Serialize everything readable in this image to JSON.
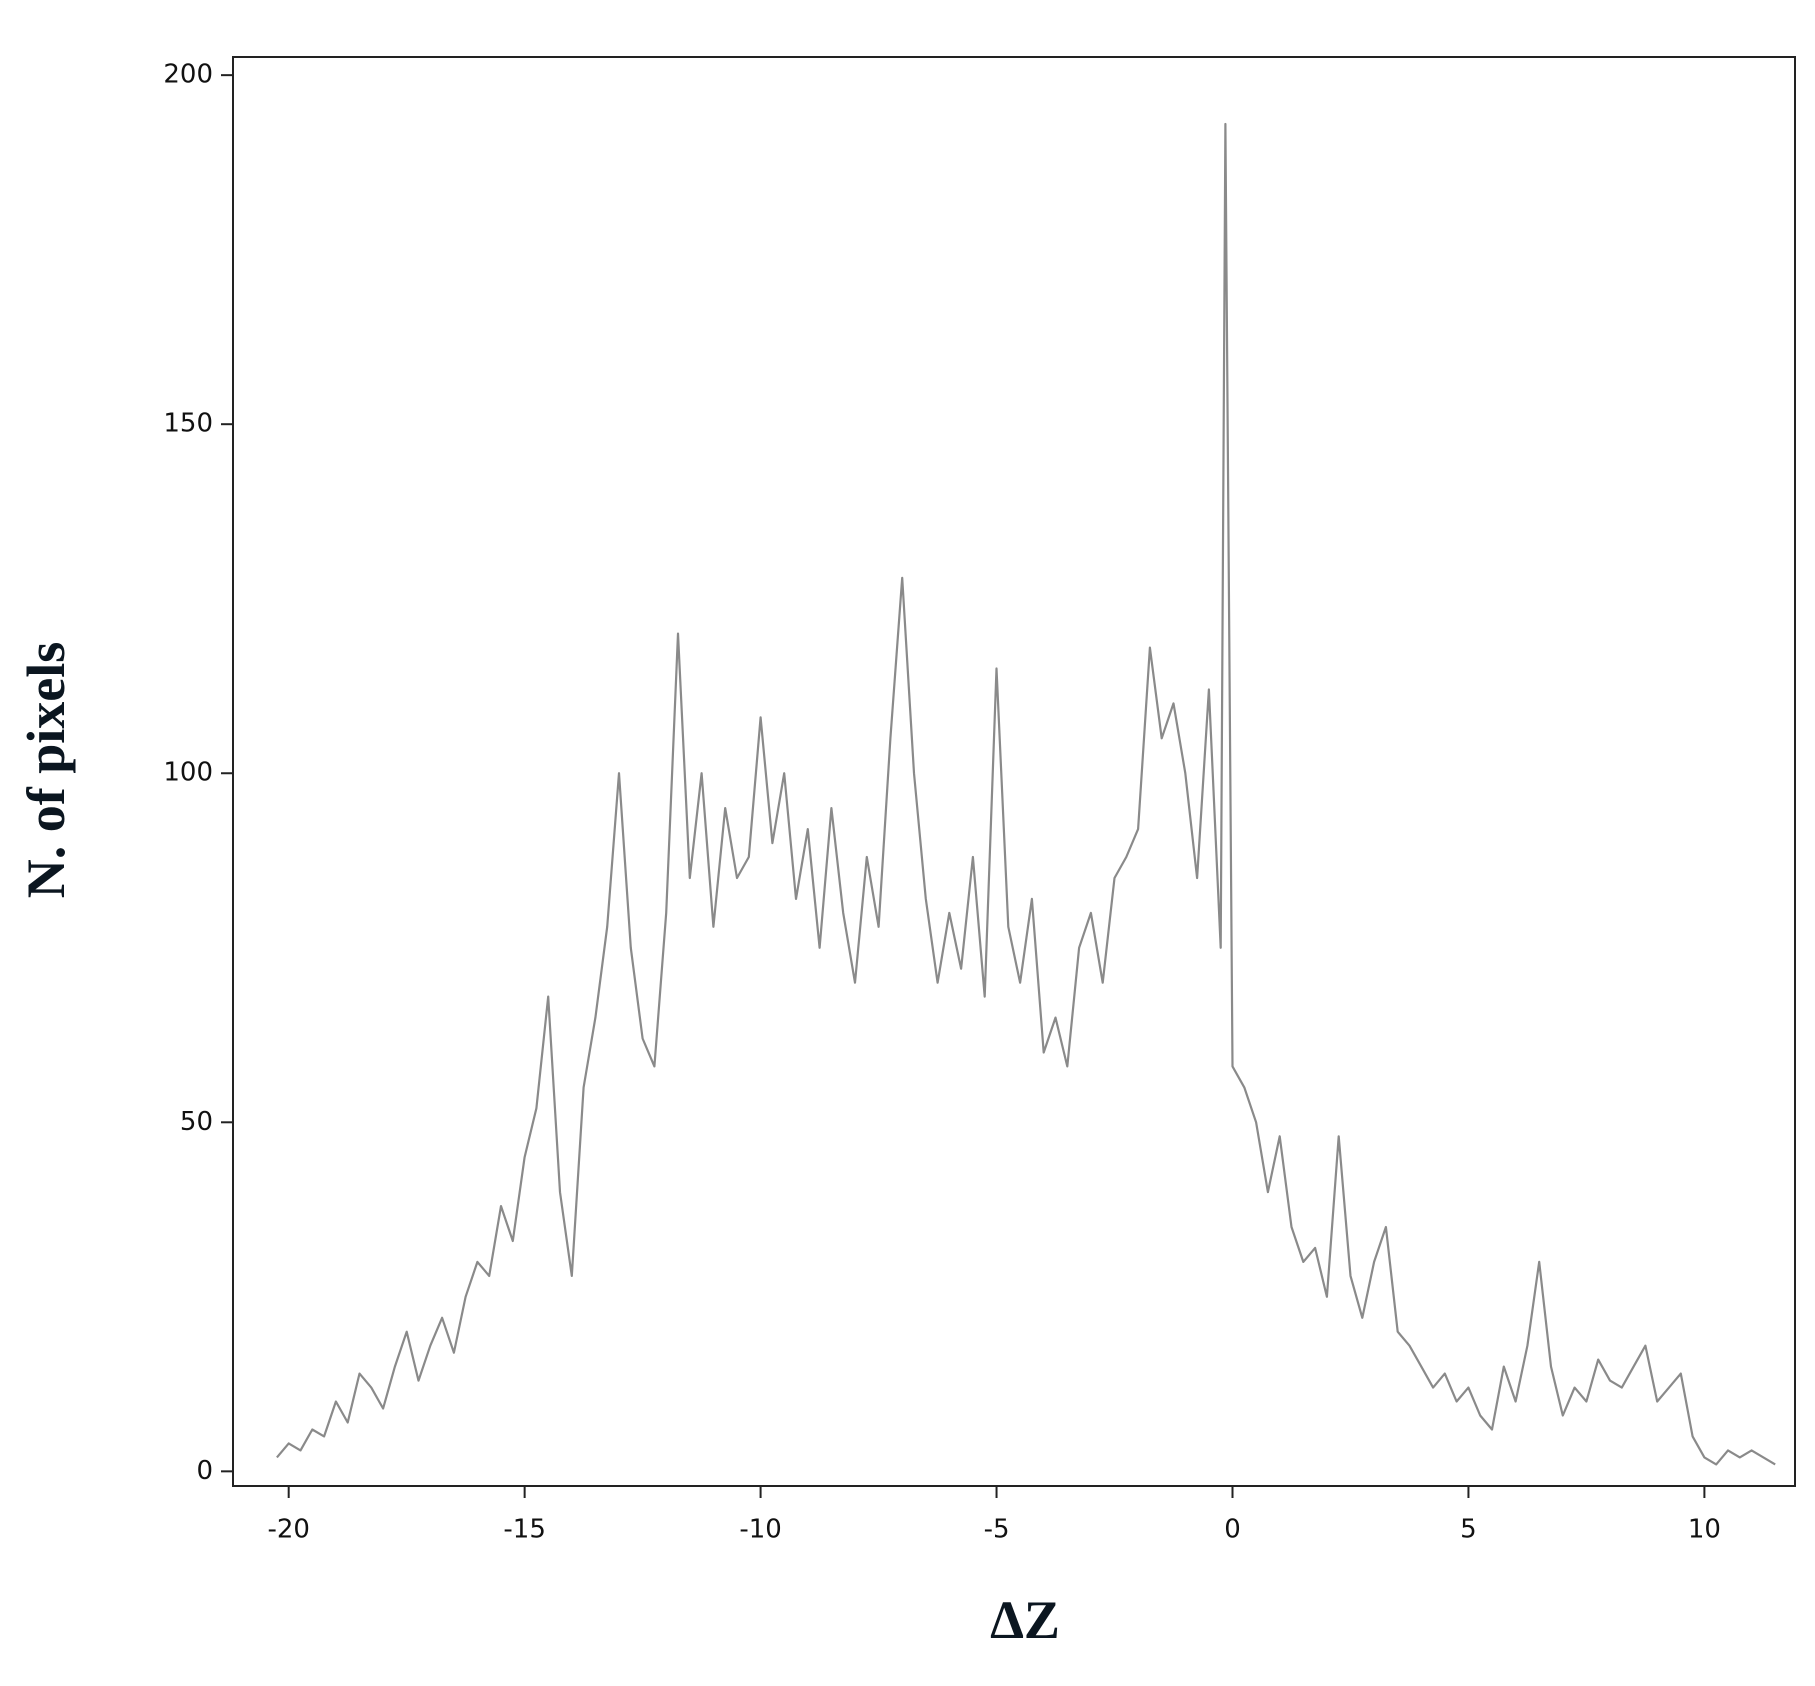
{
  "chart_data": {
    "type": "line",
    "xlabel": "ΔZ",
    "ylabel": "N. of pixels",
    "xlim": [
      -21.18,
      11.92
    ],
    "ylim": [
      -2.1,
      202.6
    ],
    "xticks": [
      -20,
      -15,
      -10,
      -5,
      0,
      5,
      10
    ],
    "yticks": [
      0,
      50,
      100,
      150,
      200
    ],
    "series": [
      {
        "color": "#8a8a8a",
        "x": [
          -20.25,
          -20,
          -19.75,
          -19.5,
          -19.25,
          -19,
          -18.75,
          -18.5,
          -18.25,
          -18,
          -17.75,
          -17.5,
          -17.25,
          -17,
          -16.75,
          -16.5,
          -16.25,
          -16,
          -15.75,
          -15.5,
          -15.25,
          -15,
          -14.75,
          -14.5,
          -14.25,
          -14,
          -13.75,
          -13.5,
          -13.25,
          -13,
          -12.75,
          -12.5,
          -12.25,
          -12,
          -11.75,
          -11.5,
          -11.25,
          -11,
          -10.75,
          -10.5,
          -10.25,
          -10,
          -9.75,
          -9.5,
          -9.25,
          -9,
          -8.75,
          -8.5,
          -8.25,
          -8,
          -7.75,
          -7.5,
          -7.25,
          -7,
          -6.75,
          -6.5,
          -6.25,
          -6,
          -5.75,
          -5.5,
          -5.25,
          -5,
          -4.75,
          -4.5,
          -4.25,
          -4,
          -3.75,
          -3.5,
          -3.25,
          -3,
          -2.75,
          -2.5,
          -2.25,
          -2,
          -1.75,
          -1.5,
          -1.25,
          -1,
          -0.75,
          -0.5,
          -0.25,
          -0.15,
          0,
          0.25,
          0.5,
          0.75,
          1,
          1.25,
          1.5,
          1.75,
          2,
          2.25,
          2.5,
          2.75,
          3,
          3.25,
          3.5,
          3.75,
          4,
          4.25,
          4.5,
          4.75,
          5,
          5.25,
          5.5,
          5.75,
          6,
          6.25,
          6.5,
          6.75,
          7,
          7.25,
          7.5,
          7.75,
          8,
          8.25,
          8.5,
          8.75,
          9,
          9.25,
          9.5,
          9.75,
          10,
          10.25,
          10.5,
          10.75,
          11,
          11.25,
          11.5
        ],
        "values": [
          2,
          4,
          3,
          6,
          5,
          10,
          7,
          14,
          12,
          9,
          15,
          20,
          13,
          18,
          22,
          17,
          25,
          30,
          28,
          38,
          33,
          45,
          52,
          68,
          40,
          28,
          55,
          65,
          78,
          100,
          75,
          62,
          58,
          80,
          120,
          85,
          100,
          78,
          95,
          85,
          88,
          108,
          90,
          100,
          82,
          92,
          75,
          95,
          80,
          70,
          88,
          78,
          105,
          128,
          100,
          82,
          70,
          80,
          72,
          88,
          68,
          115,
          78,
          70,
          82,
          60,
          65,
          58,
          75,
          80,
          70,
          85,
          88,
          92,
          118,
          105,
          110,
          100,
          85,
          112,
          75,
          193,
          58,
          55,
          50,
          40,
          48,
          35,
          30,
          32,
          25,
          48,
          28,
          22,
          30,
          35,
          20,
          18,
          15,
          12,
          14,
          10,
          12,
          8,
          6,
          15,
          10,
          18,
          30,
          15,
          8,
          12,
          10,
          16,
          13,
          12,
          15,
          18,
          10,
          12,
          14,
          5,
          2,
          1,
          3,
          2,
          3,
          2,
          1
        ]
      }
    ]
  }
}
